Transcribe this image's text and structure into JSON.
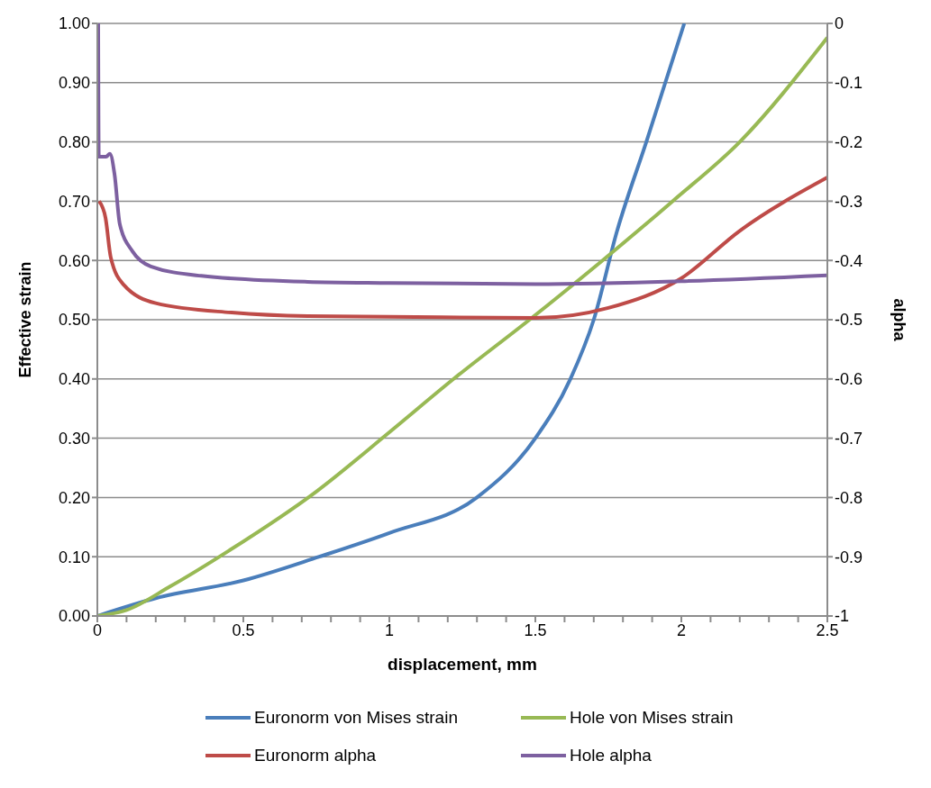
{
  "chart_data": {
    "type": "line",
    "xlabel": "displacement, mm",
    "ylabel": "Effective strain",
    "y2label": "alpha",
    "xlim": [
      0,
      2.5
    ],
    "xticks": [
      0,
      {
        "value": 0.1,
        "label": null
      },
      {
        "value": 0.2,
        "label": null
      },
      {
        "value": 0.3,
        "label": null
      },
      {
        "value": 0.4,
        "label": null
      },
      0.5,
      {
        "value": 0.6,
        "label": null
      },
      {
        "value": 0.7,
        "label": null
      },
      {
        "value": 0.8,
        "label": null
      },
      {
        "value": 0.9,
        "label": null
      },
      1,
      {
        "value": 1.1,
        "label": null
      },
      {
        "value": 1.2,
        "label": null
      },
      {
        "value": 1.3,
        "label": null
      },
      {
        "value": 1.4,
        "label": null
      },
      1.5,
      {
        "value": 1.6,
        "label": null
      },
      {
        "value": 1.7,
        "label": null
      },
      {
        "value": 1.8,
        "label": null
      },
      {
        "value": 1.9,
        "label": null
      },
      2,
      {
        "value": 2.1,
        "label": null
      },
      {
        "value": 2.2,
        "label": null
      },
      {
        "value": 2.3,
        "label": null
      },
      {
        "value": 2.4,
        "label": null
      },
      2.5
    ],
    "ylim": [
      0,
      1
    ],
    "yticks": [
      {
        "value": 0,
        "label": "0.00"
      },
      {
        "value": 0.1,
        "label": "0.10"
      },
      {
        "value": 0.2,
        "label": "0.20"
      },
      {
        "value": 0.3,
        "label": "0.30"
      },
      {
        "value": 0.4,
        "label": "0.40"
      },
      {
        "value": 0.5,
        "label": "0.50"
      },
      {
        "value": 0.6,
        "label": "0.60"
      },
      {
        "value": 0.7,
        "label": "0.70"
      },
      {
        "value": 0.8,
        "label": "0.80"
      },
      {
        "value": 0.9,
        "label": "0.90"
      },
      {
        "value": 1,
        "label": "1.00"
      }
    ],
    "y2lim": [
      -1,
      0
    ],
    "y2ticks": [
      -1,
      -0.9,
      -0.8,
      -0.7,
      -0.6,
      -0.5,
      -0.4,
      -0.3,
      -0.2,
      -0.1,
      0
    ],
    "grid": "y",
    "legend": "bottom",
    "marker": "none",
    "line_style": "solid",
    "series": [
      {
        "name": "Euronorm von Mises strain",
        "color": "#4a7ebb",
        "x": [
          0,
          0.2,
          0.5,
          0.76,
          1.0,
          1.3,
          1.5,
          1.62,
          1.7,
          1.78,
          1.88,
          2.01
        ],
        "values": [
          0,
          0.03,
          0.06,
          0.1,
          0.14,
          0.2,
          0.3,
          0.4,
          0.5,
          0.65,
          0.8,
          1.0
        ]
      },
      {
        "name": "Hole von Mises strain",
        "color": "#98b954",
        "x": [
          0,
          0.1,
          0.25,
          0.45,
          0.75,
          1.0,
          1.22,
          1.48,
          1.73,
          1.97,
          2.2,
          2.5
        ],
        "values": [
          0,
          0.01,
          0.05,
          0.11,
          0.21,
          0.31,
          0.4,
          0.5,
          0.6,
          0.7,
          0.8,
          0.976
        ]
      },
      {
        "name": "Euronorm alpha",
        "color": "#be4b48",
        "axis": "y2",
        "x": [
          0.006,
          0.028,
          0.046,
          0.09,
          0.2,
          0.46,
          0.72,
          1.0,
          1.5,
          1.75,
          2.0,
          2.2,
          2.5
        ],
        "values": [
          -0.3,
          -0.328,
          -0.395,
          -0.441,
          -0.472,
          -0.488,
          -0.494,
          -0.495,
          -0.497,
          -0.48,
          -0.43,
          -0.35,
          -0.26
        ]
      },
      {
        "name": "Hole alpha",
        "color": "#7d60a0",
        "axis": "y2",
        "x": [
          0.003,
          0.005,
          0.03,
          0.043,
          0.059,
          0.077,
          0.121,
          0.183,
          0.356,
          0.72,
          1.0,
          1.5,
          2.0,
          2.5
        ],
        "values": [
          0,
          -0.225,
          -0.225,
          -0.22,
          -0.255,
          -0.339,
          -0.385,
          -0.41,
          -0.426,
          -0.436,
          -0.438,
          -0.44,
          -0.435,
          -0.425
        ]
      }
    ]
  }
}
